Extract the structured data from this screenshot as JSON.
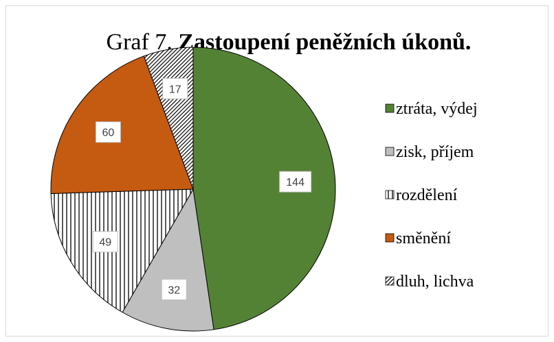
{
  "chart_data": {
    "type": "pie",
    "title_parts": [
      "Graf 7.",
      "Zastoupení peněžních úkonů."
    ],
    "categories": [
      "ztráta, výdej",
      "zisk, příjem",
      "rozdělení",
      "směnění",
      "dluh, lichva"
    ],
    "values": [
      144,
      32,
      49,
      60,
      17
    ],
    "colors": [
      "#548235",
      "#bfbfbf",
      "vertical-stripes",
      "#c55a11",
      "diagonal-hatch"
    ],
    "legend": "right"
  }
}
